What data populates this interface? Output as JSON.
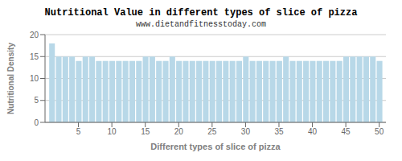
{
  "chart_data": {
    "type": "bar",
    "title": "Nutritional Value in different types of slice of pizza",
    "subtitle": "www.dietandfitnesstoday.com",
    "xlabel": "Different types of slice of pizza",
    "ylabel": "Nutritional Density",
    "x": [
      1,
      2,
      3,
      4,
      5,
      6,
      7,
      8,
      9,
      10,
      11,
      12,
      13,
      14,
      15,
      16,
      17,
      18,
      19,
      20,
      21,
      22,
      23,
      24,
      25,
      26,
      27,
      28,
      29,
      30,
      31,
      32,
      33,
      34,
      35,
      36,
      37,
      38,
      39,
      40,
      41,
      42,
      43,
      44,
      45,
      46,
      47,
      48,
      49,
      50
    ],
    "values": [
      18,
      15,
      15,
      15,
      14,
      15,
      15,
      14,
      14,
      14,
      14,
      14,
      14,
      14,
      15,
      15,
      14,
      14,
      15,
      14,
      14,
      14,
      14,
      14,
      14,
      14,
      14,
      14,
      14,
      15,
      14,
      14,
      14,
      14,
      14,
      15,
      14,
      14,
      14,
      14,
      14,
      14,
      14,
      14,
      15,
      15,
      15,
      15,
      15,
      14
    ],
    "color": "#b8d8e8",
    "xlim": [
      0,
      51
    ],
    "ylim": [
      0,
      20
    ],
    "xticks": [
      5,
      10,
      15,
      20,
      25,
      30,
      35,
      40,
      45,
      50
    ],
    "yticks": [
      0,
      5,
      10,
      15,
      20
    ],
    "grid": true
  }
}
